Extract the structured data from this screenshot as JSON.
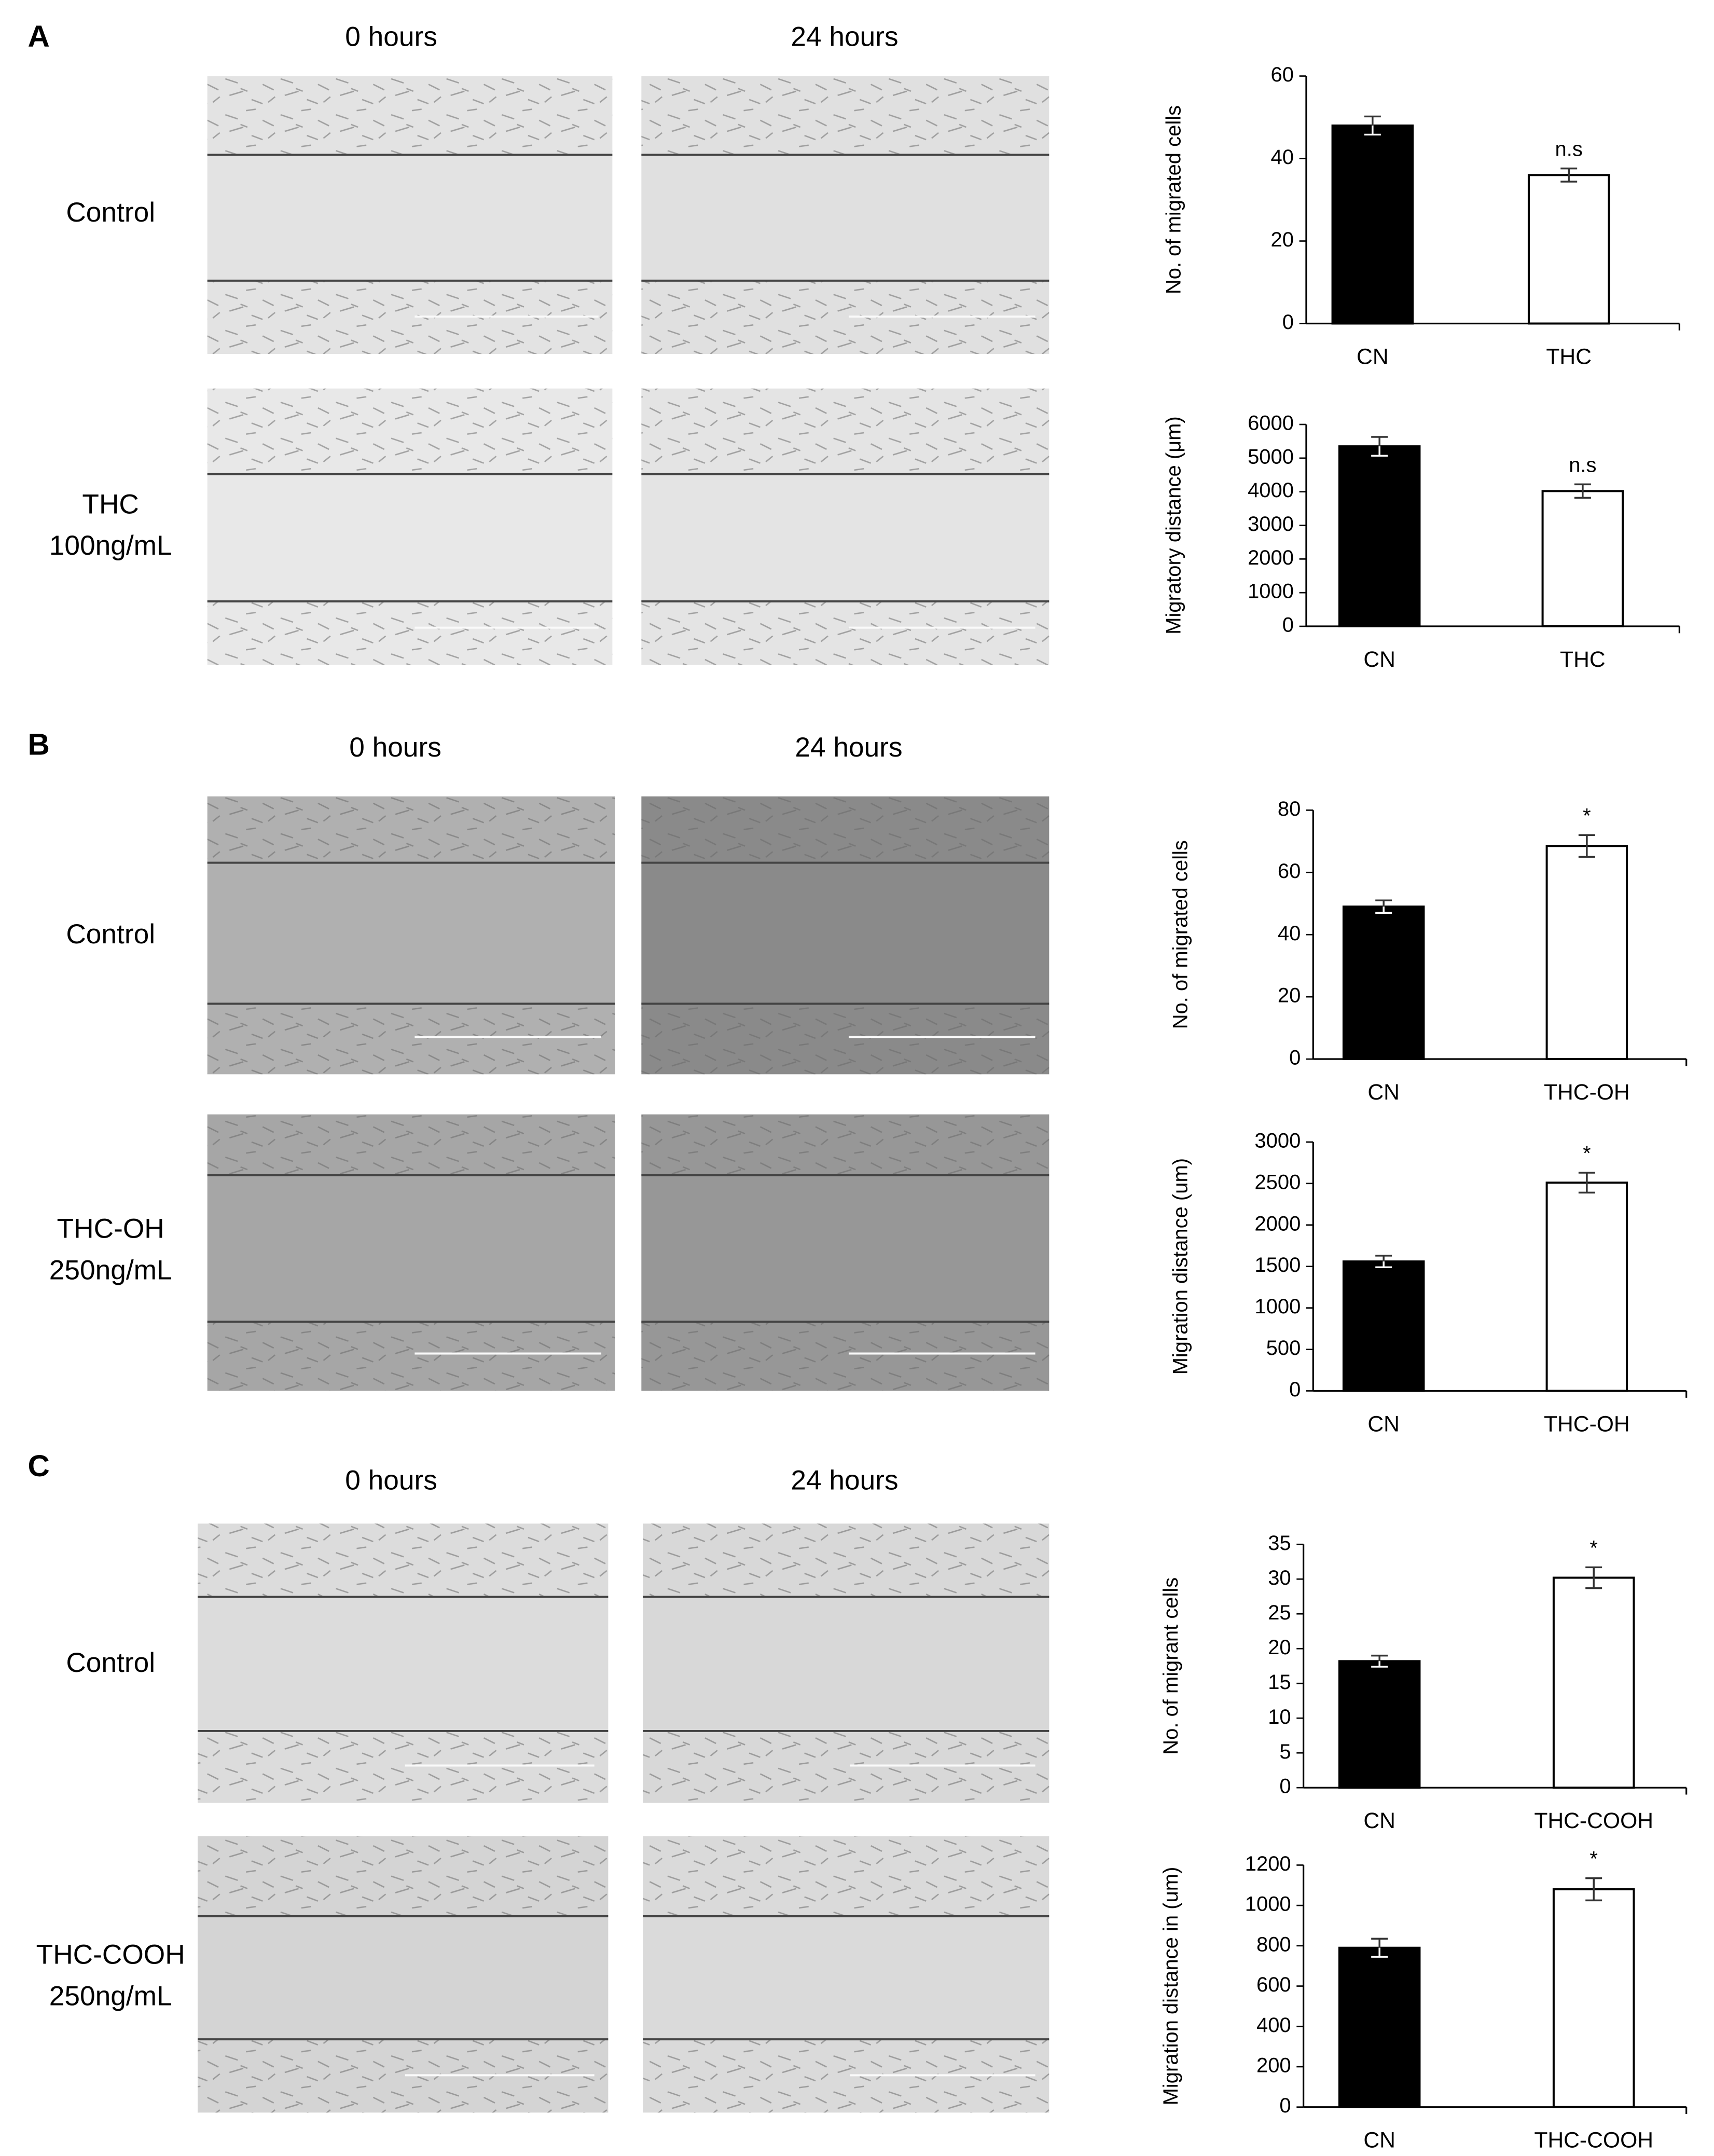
{
  "panels": [
    {
      "label": "A",
      "columns": [
        "0 hours",
        "24 hours"
      ],
      "rows": [
        [
          "Control"
        ],
        [
          "THC",
          "100ng/mL"
        ]
      ]
    },
    {
      "label": "B",
      "columns": [
        "0 hours",
        "24 hours"
      ],
      "rows": [
        [
          "Control"
        ],
        [
          "THC-OH",
          "250ng/mL"
        ]
      ]
    },
    {
      "label": "C",
      "columns": [
        "0 hours",
        "24 hours"
      ],
      "rows": [
        [
          "Control"
        ],
        [
          "THC-COOH",
          "250ng/mL"
        ]
      ]
    }
  ],
  "chart_data": [
    {
      "type": "bar",
      "ylabel": "No. of migrated cells",
      "categories": [
        "CN",
        "THC"
      ],
      "values": [
        48,
        36
      ],
      "errors": [
        2.2,
        1.6
      ],
      "annotations": [
        null,
        "n.s"
      ],
      "colors": [
        "#000000",
        "#ffffff"
      ],
      "ylim": [
        0,
        60
      ],
      "yticks": [
        0,
        20,
        40,
        60
      ]
    },
    {
      "type": "bar",
      "ylabel": "Migratory distance (μm)",
      "categories": [
        "CN",
        "THC"
      ],
      "values": [
        5350,
        4020
      ],
      "errors": [
        280,
        200
      ],
      "annotations": [
        null,
        "n.s"
      ],
      "colors": [
        "#000000",
        "#ffffff"
      ],
      "ylim": [
        0,
        6000
      ],
      "yticks": [
        0,
        1000,
        2000,
        3000,
        4000,
        5000,
        6000
      ]
    },
    {
      "type": "bar",
      "ylabel": "No. of migrated cells",
      "categories": [
        "CN",
        "THC-OH"
      ],
      "values": [
        49,
        68.5
      ],
      "errors": [
        2,
        3.5
      ],
      "annotations": [
        null,
        "*"
      ],
      "colors": [
        "#000000",
        "#ffffff"
      ],
      "ylim": [
        0,
        80
      ],
      "yticks": [
        0,
        20,
        40,
        60,
        80
      ]
    },
    {
      "type": "bar",
      "ylabel": "Migration distance (um)",
      "categories": [
        "CN",
        "THC-OH"
      ],
      "values": [
        1560,
        2510
      ],
      "errors": [
        70,
        120
      ],
      "annotations": [
        null,
        "*"
      ],
      "colors": [
        "#000000",
        "#ffffff"
      ],
      "ylim": [
        0,
        3000
      ],
      "yticks": [
        0,
        500,
        1000,
        1500,
        2000,
        2500,
        3000
      ]
    },
    {
      "type": "bar",
      "ylabel": "No. of migrant cells",
      "categories": [
        "CN",
        "THC-COOH"
      ],
      "values": [
        18.2,
        30.2
      ],
      "errors": [
        0.8,
        1.5
      ],
      "annotations": [
        null,
        "*"
      ],
      "colors": [
        "#000000",
        "#ffffff"
      ],
      "ylim": [
        0,
        35
      ],
      "yticks": [
        0,
        5,
        10,
        15,
        20,
        25,
        30,
        35
      ]
    },
    {
      "type": "bar",
      "ylabel": "Migration distance in (um)",
      "categories": [
        "CN",
        "THC-COOH"
      ],
      "values": [
        790,
        1080
      ],
      "errors": [
        45,
        55
      ],
      "annotations": [
        null,
        "*"
      ],
      "colors": [
        "#000000",
        "#ffffff"
      ],
      "ylim": [
        0,
        1200
      ],
      "yticks": [
        0,
        200,
        400,
        600,
        800,
        1000,
        1200
      ]
    }
  ]
}
